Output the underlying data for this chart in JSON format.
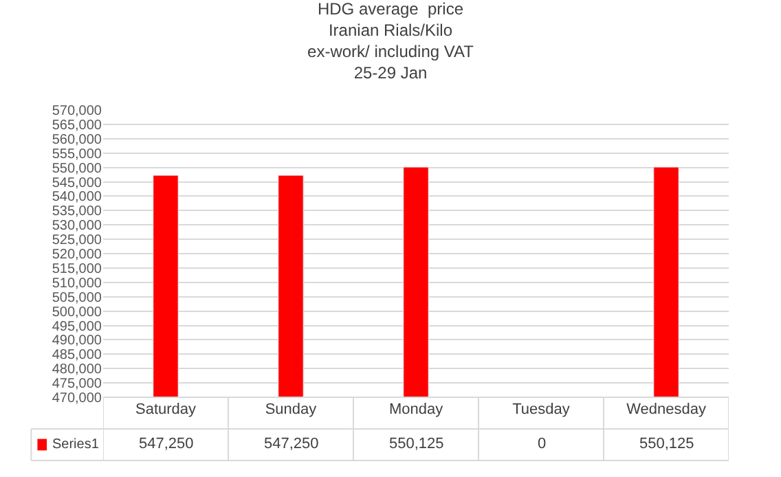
{
  "chart_data": {
    "type": "bar",
    "title": "HDG average  price\nIranian Rials/Kilo\nex-work/ including VAT\n25-29 Jan",
    "categories": [
      "Saturday",
      "Sunday",
      "Monday",
      "Tuesday",
      "Wednesday"
    ],
    "series": [
      {
        "name": "Series1",
        "color": "#ff0000",
        "values": [
          547250,
          547250,
          550125,
          null,
          550125
        ],
        "value_labels": [
          "547,250",
          "547,250",
          "550,125",
          "0",
          "550,125"
        ]
      }
    ],
    "ylim": [
      470000,
      570000
    ],
    "yticks": [
      {
        "value": 470000,
        "label": "470,000"
      },
      {
        "value": 475000,
        "label": "475,000"
      },
      {
        "value": 480000,
        "label": "480,000"
      },
      {
        "value": 485000,
        "label": "485,000"
      },
      {
        "value": 490000,
        "label": "490,000"
      },
      {
        "value": 495000,
        "label": "495,000"
      },
      {
        "value": 500000,
        "label": "500,000"
      },
      {
        "value": 505000,
        "label": "505,000"
      },
      {
        "value": 510000,
        "label": "510,000"
      },
      {
        "value": 515000,
        "label": "515,000"
      },
      {
        "value": 520000,
        "label": "520,000"
      },
      {
        "value": 525000,
        "label": "525,000"
      },
      {
        "value": 530000,
        "label": "530,000"
      },
      {
        "value": 535000,
        "label": "535,000"
      },
      {
        "value": 540000,
        "label": "540,000"
      },
      {
        "value": 545000,
        "label": "545,000"
      },
      {
        "value": 550000,
        "label": "550,000"
      },
      {
        "value": 555000,
        "label": "555,000"
      },
      {
        "value": 560000,
        "label": "560,000"
      },
      {
        "value": 565000,
        "label": "565,000"
      },
      {
        "value": 570000,
        "label": "570,000"
      }
    ],
    "grid": "y",
    "legend": "bottom left"
  }
}
